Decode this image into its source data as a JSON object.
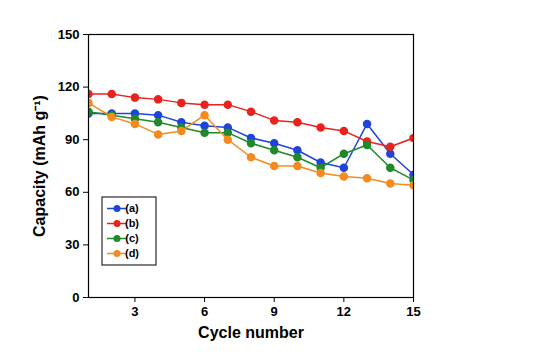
{
  "chart_data": {
    "type": "line",
    "xlabel": "Cycle number",
    "ylabel": "Capacity (mAh g⁻¹)",
    "x": [
      1,
      2,
      3,
      4,
      5,
      6,
      7,
      8,
      9,
      10,
      11,
      12,
      13,
      14,
      15
    ],
    "series": [
      {
        "name": "(a)",
        "color": "#1f45d8",
        "marker": "circle",
        "values": [
          105,
          105,
          105,
          104,
          100,
          98,
          97,
          91,
          88,
          84,
          77,
          74,
          99,
          82,
          70
        ]
      },
      {
        "name": "(b)",
        "color": "#e8231e",
        "marker": "circle",
        "values": [
          116,
          116,
          114,
          113,
          111,
          110,
          110,
          106,
          101,
          100,
          97,
          95,
          89,
          86,
          91
        ]
      },
      {
        "name": "(c)",
        "color": "#1e8a2a",
        "marker": "circle",
        "values": [
          106,
          104,
          102,
          100,
          97,
          94,
          94,
          88,
          84,
          80,
          74,
          82,
          87,
          74,
          67
        ]
      },
      {
        "name": "(d)",
        "color": "#f58a1f",
        "marker": "circle",
        "values": [
          111,
          103,
          99,
          93,
          95,
          104,
          90,
          80,
          75,
          75,
          71,
          69,
          68,
          65,
          64
        ]
      }
    ],
    "xlim": [
      1,
      15
    ],
    "xticks": [
      3,
      6,
      9,
      12,
      15
    ],
    "ylim": [
      0,
      150
    ],
    "yticks": [
      0,
      30,
      60,
      90,
      120,
      150
    ],
    "grid": false,
    "legend": "lower left"
  }
}
